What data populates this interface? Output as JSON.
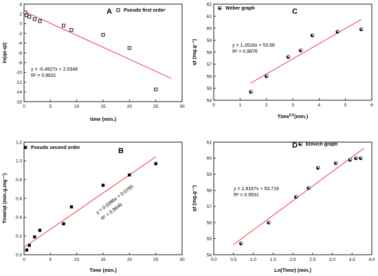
{
  "chart_data": [
    {
      "id": "A",
      "type": "scatter",
      "panel_label": "A",
      "legend": "Pseudo first order",
      "legend_marker": "square-open",
      "xlabel": "time (min.)",
      "ylabel": "ln(qe-qt)",
      "xlim": [
        0,
        30
      ],
      "ylim": [
        -16,
        4
      ],
      "xticks": [
        0,
        5,
        10,
        15,
        20,
        25,
        30
      ],
      "yticks": [
        -16,
        -14,
        -12,
        -10,
        -8,
        -6,
        -4,
        -2,
        0,
        2,
        4
      ],
      "x": [
        0.25,
        0.5,
        1,
        2,
        3,
        7.5,
        9,
        15,
        20,
        25
      ],
      "y": [
        2.3,
        1.7,
        1.4,
        0.9,
        0.5,
        -0.4,
        -1.3,
        -2.3,
        -5.0,
        -13.5
      ],
      "fit": {
        "x0": 0,
        "x1": 28,
        "slope": -0.4927,
        "intercept": 2.5348
      },
      "equation": "y = -0.4927x + 2.5348",
      "r2": "R² = 0.8631",
      "marker": "square-open"
    },
    {
      "id": "B",
      "type": "scatter",
      "panel_label": "B",
      "legend": "Pseudo second order",
      "legend_marker": "square-filled",
      "xlabel": "Time (min.)",
      "ylabel": "Time/qt (min.g.mg⁻¹)",
      "xlim": [
        0,
        30
      ],
      "ylim": [
        0,
        1.2
      ],
      "xticks": [
        0,
        5,
        10,
        15,
        20,
        25,
        30
      ],
      "yticks": [
        0.0,
        0.2,
        0.4,
        0.6,
        0.8,
        1.0,
        1.2
      ],
      "ytick_labels": [
        "0.0",
        "0.2",
        "0.4",
        "0.6",
        "0.8",
        "1.0",
        "1.2"
      ],
      "x": [
        0.5,
        1,
        2,
        3,
        7.5,
        9,
        15,
        20,
        25
      ],
      "y": [
        0.05,
        0.1,
        0.19,
        0.26,
        0.33,
        0.51,
        0.74,
        0.85,
        0.97
      ],
      "fit": {
        "x0": 0,
        "x1": 25,
        "slope": 0.0386,
        "intercept": 0.0785
      },
      "equation": "y = 0.0386x + 0.0785",
      "r2": "R² = 0.9646",
      "marker": "square-filled"
    },
    {
      "id": "C",
      "type": "scatter",
      "panel_label": "C",
      "legend": "Weber graph",
      "legend_marker": "circle-half",
      "xlabel": "Time",
      "xlabel_sup": "0.5",
      "xlabel_suffix": "(min.)",
      "ylabel": "qt (mg.g⁻¹)",
      "xlim": [
        0,
        6
      ],
      "ylim": [
        54,
        62
      ],
      "xticks": [
        0,
        1,
        2,
        3,
        4,
        5,
        6
      ],
      "yticks": [
        54,
        55,
        56,
        57,
        58,
        59,
        60,
        61,
        62
      ],
      "x": [
        1.41,
        2.0,
        2.83,
        3.3,
        3.74,
        4.7,
        5.6
      ],
      "y": [
        54.7,
        56.0,
        57.6,
        58.15,
        59.4,
        59.7,
        59.9
      ],
      "fit": {
        "x0": 1.4,
        "x1": 5.6,
        "slope": 1.2616,
        "intercept": 53.66
      },
      "equation": "y = 1.2616x + 53.66",
      "r2": "R² = 0.8876",
      "marker": "circle-half"
    },
    {
      "id": "D",
      "type": "scatter",
      "panel_label": "D",
      "legend": "Elovich graph",
      "legend_marker": "circle-half",
      "xlabel": "Ln(Time) (min.)",
      "ylabel": "qt (mg.g⁻¹)",
      "xlim": [
        0,
        4
      ],
      "ylim": [
        54,
        61
      ],
      "xticks": [
        0.0,
        0.5,
        1.0,
        1.5,
        2.0,
        2.5,
        3.0,
        3.5,
        4.0
      ],
      "xtick_labels": [
        "0.0",
        "0.5",
        "1.0",
        "1.5",
        "2.0",
        "2.5",
        "3.0",
        "3.5",
        "4.0"
      ],
      "yticks": [
        54,
        55,
        56,
        57,
        58,
        59,
        60,
        61
      ],
      "x": [
        0.69,
        1.39,
        2.08,
        2.4,
        2.64,
        3.09,
        3.45,
        3.6,
        3.72
      ],
      "y": [
        54.7,
        56.0,
        57.6,
        58.15,
        59.4,
        59.7,
        59.9,
        60.0,
        60.0
      ],
      "fit": {
        "x0": 0.5,
        "x1": 3.8,
        "slope": 1.8167,
        "intercept": 53.719
      },
      "equation": "y = 1.8167x + 53.719",
      "r2": "R² = 0.9531",
      "marker": "circle-half"
    }
  ],
  "colors": {
    "fit_line": "#e8202a",
    "axis": "#000000",
    "marker": "#000000"
  }
}
